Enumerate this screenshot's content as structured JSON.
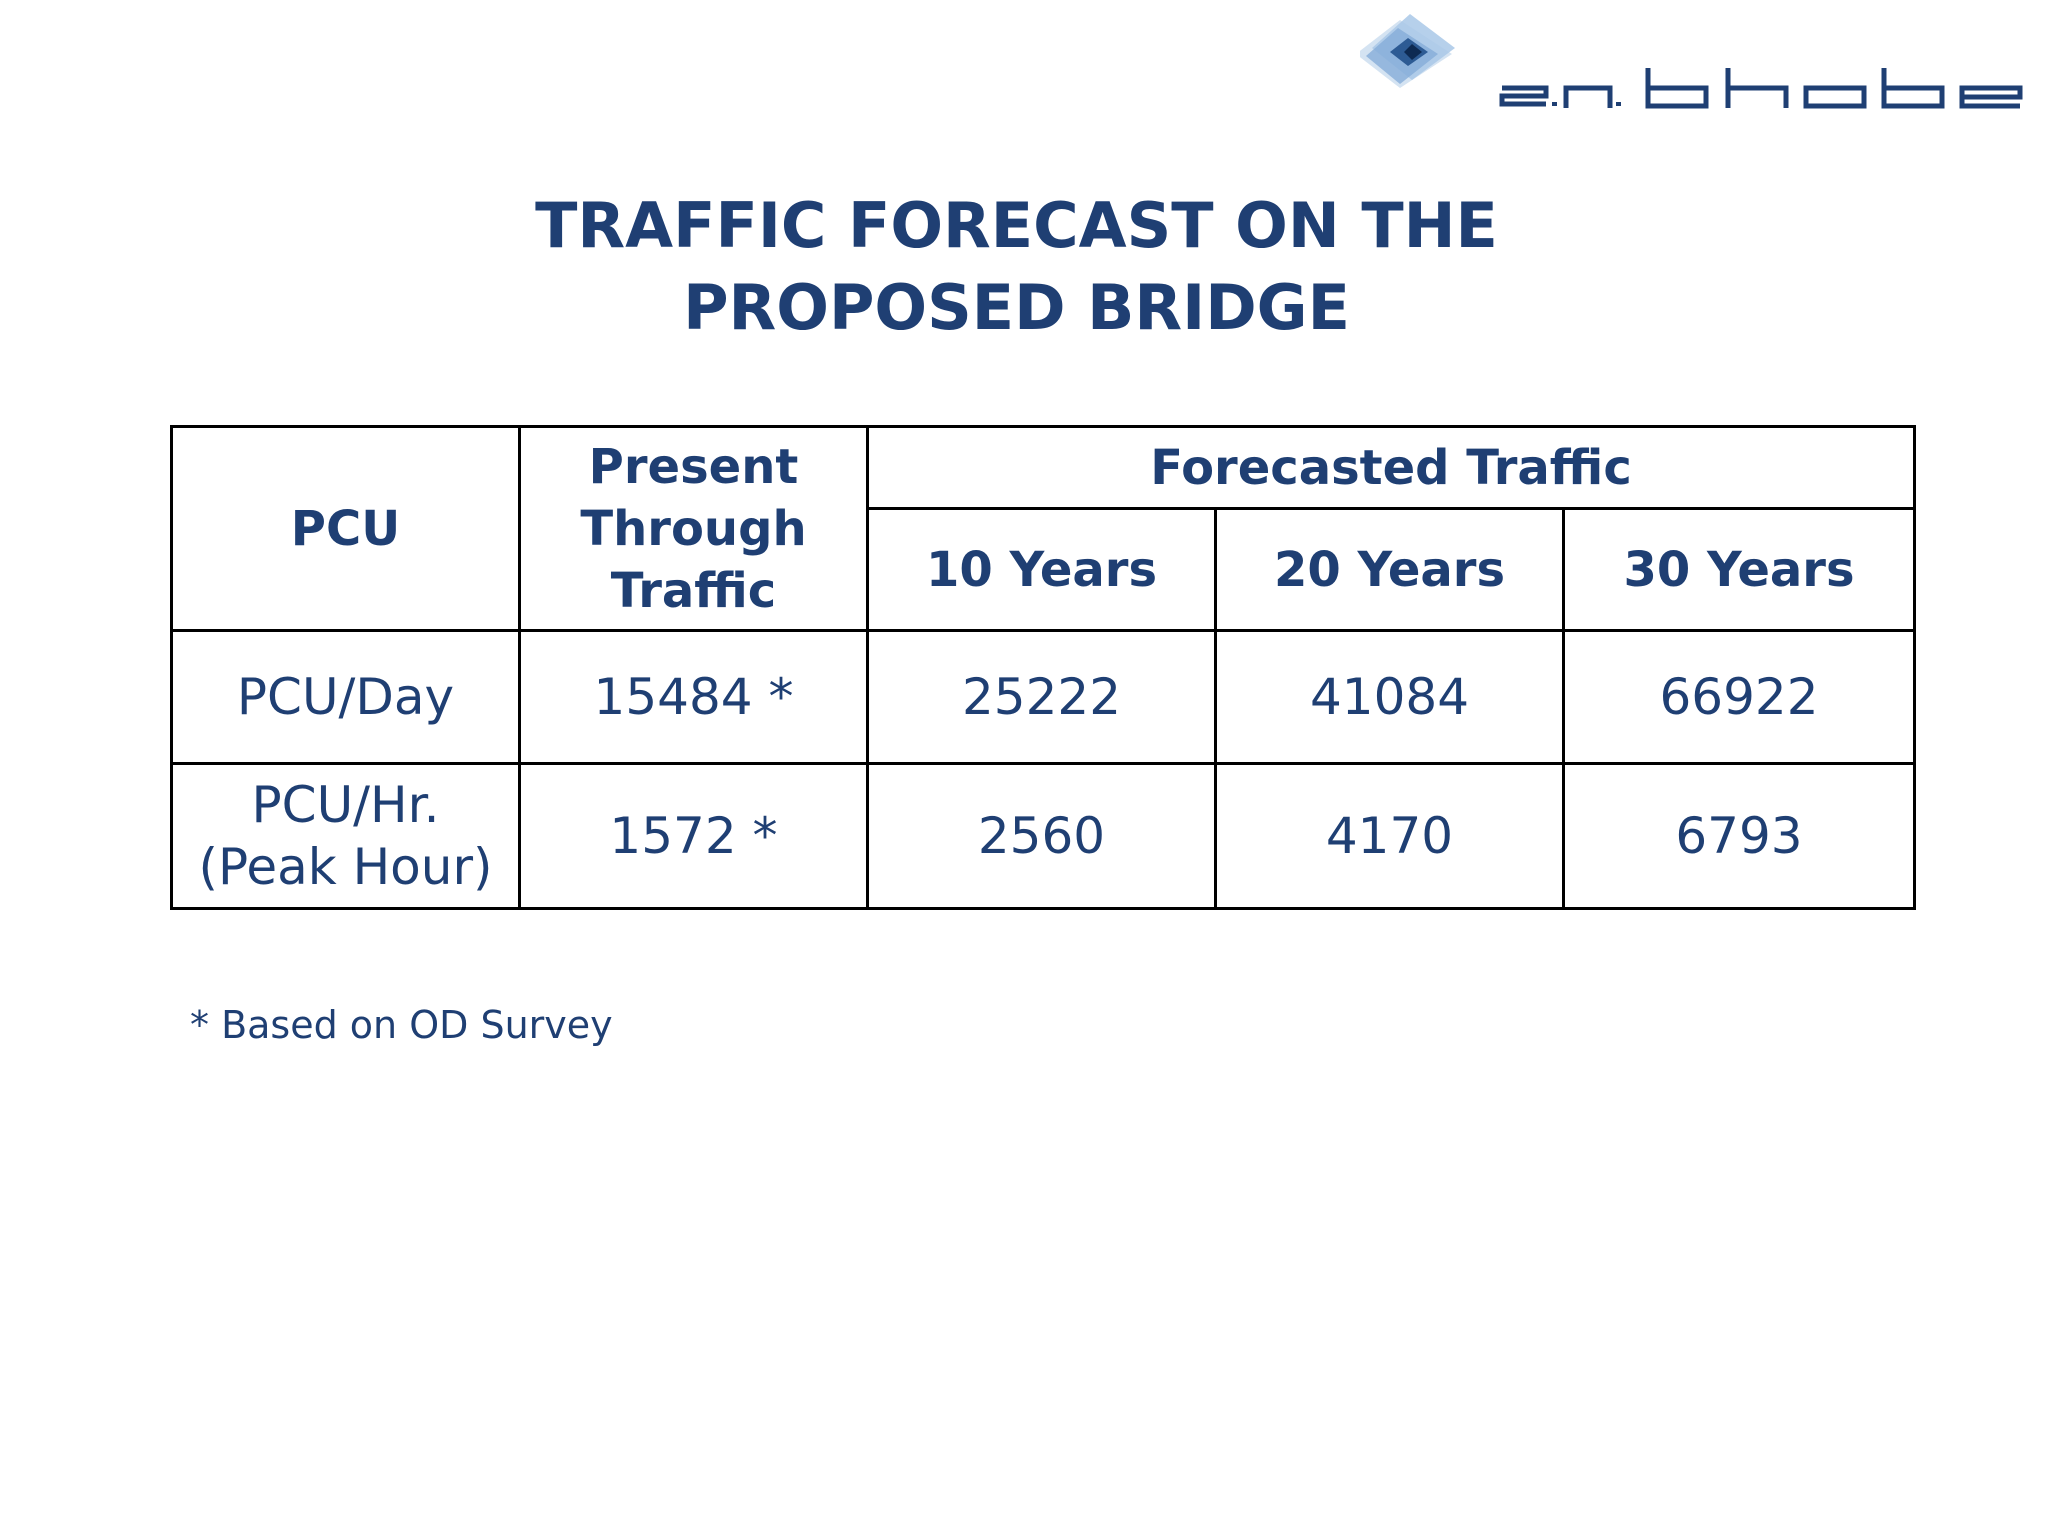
{
  "logo": {
    "text": "s.n. bhobe",
    "colors": {
      "primary": "#1f3f73",
      "light": "#8fb5dc",
      "dark": "#0d2a52"
    }
  },
  "title": {
    "line1": "TRAFFIC FORECAST ON THE",
    "line2": "PROPOSED BRIDGE"
  },
  "table": {
    "headers": {
      "pcu": "PCU",
      "present": [
        "Present",
        "Through",
        "Traffic"
      ],
      "forecast_group": "Forecasted Traffic",
      "years": [
        "10 Years",
        "20 Years",
        "30 Years"
      ]
    },
    "rows": [
      {
        "label": [
          "PCU/Day"
        ],
        "present": "15484 *",
        "values": [
          "25222",
          "41084",
          "66922"
        ]
      },
      {
        "label": [
          "PCU/Hr.",
          "(Peak Hour)"
        ],
        "present": "1572 *",
        "values": [
          "2560",
          "4170",
          "6793"
        ]
      }
    ]
  },
  "footnote": "* Based on OD Survey",
  "colors": {
    "text": "#1f3f73",
    "border": "#000000",
    "background": "#ffffff"
  }
}
